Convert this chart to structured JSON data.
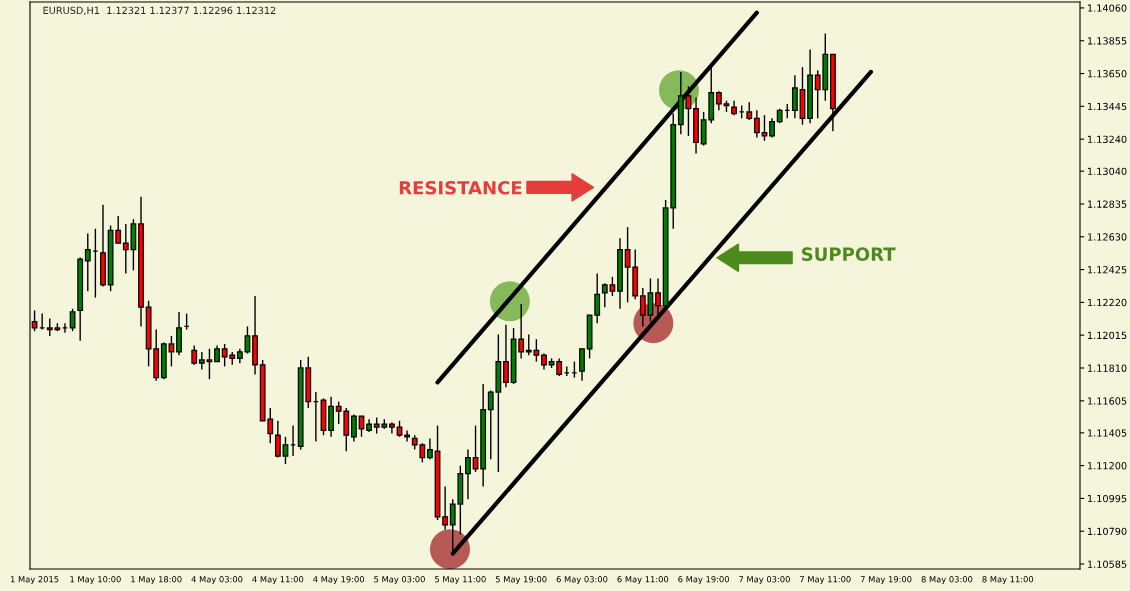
{
  "chart_data": {
    "type": "candlestick",
    "title": "EURUSD,H1  1.12321 1.12377 1.12296 1.12312",
    "categories": [
      "1 May 2015",
      null,
      null,
      null,
      null,
      null,
      null,
      null,
      "1 May 10:00",
      null,
      null,
      null,
      null,
      null,
      null,
      null,
      "1 May 18:00",
      null,
      null,
      null,
      null,
      null,
      null,
      null,
      "4 May 03:00",
      null,
      null,
      null,
      null,
      null,
      null,
      null,
      "4 May 11:00",
      null,
      null,
      null,
      null,
      null,
      null,
      null,
      "4 May 19:00",
      null,
      null,
      null,
      null,
      null,
      null,
      null,
      "5 May 03:00",
      null,
      null,
      null,
      null,
      null,
      null,
      null,
      "5 May 11:00",
      null,
      null,
      null,
      null,
      null,
      null,
      null,
      "5 May 19:00",
      null,
      null,
      null,
      null,
      null,
      null,
      null,
      "6 May 03:00",
      null,
      null,
      null,
      null,
      null,
      null,
      null,
      "6 May 11:00",
      null,
      null,
      null,
      null,
      null,
      null,
      null,
      "6 May 19:00",
      null,
      null,
      null,
      null,
      null,
      null,
      null,
      "7 May 03:00",
      null,
      null,
      null,
      null,
      null,
      null,
      null,
      "7 May 11:00",
      null,
      null,
      null,
      null,
      null,
      null,
      null,
      "7 May 19:00",
      null,
      null,
      null,
      null,
      null,
      null,
      null,
      "8 May 03:00",
      null,
      null,
      null,
      null,
      null,
      null,
      null,
      "8 May 11:00",
      null,
      null,
      null,
      null,
      null,
      null,
      null,
      null,
      null
    ],
    "ohlc": [
      [
        1.121,
        1.1217,
        1.1204,
        1.1206
      ],
      [
        1.1206,
        1.1215,
        1.1205,
        1.1206
      ],
      [
        1.1206,
        1.1212,
        1.1201,
        1.1205
      ],
      [
        1.1206,
        1.1209,
        1.1204,
        1.1205
      ],
      [
        1.1206,
        1.1209,
        1.1203,
        1.1206
      ],
      [
        1.1206,
        1.1218,
        1.1204,
        1.1216
      ],
      [
        1.1217,
        1.125,
        1.1198,
        1.1249
      ],
      [
        1.1248,
        1.1265,
        1.1229,
        1.1255
      ],
      [
        1.1254,
        1.1268,
        1.1225,
        1.1254
      ],
      [
        1.1253,
        1.1283,
        1.1232,
        1.1233
      ],
      [
        1.1233,
        1.127,
        1.1229,
        1.1267
      ],
      [
        1.1267,
        1.1276,
        1.1259,
        1.1259
      ],
      [
        1.1259,
        1.1271,
        1.124,
        1.1255
      ],
      [
        1.1255,
        1.1274,
        1.1242,
        1.1271
      ],
      [
        1.1271,
        1.1288,
        1.1207,
        1.1219
      ],
      [
        1.1219,
        1.1223,
        1.1182,
        1.1193
      ],
      [
        1.1193,
        1.1205,
        1.1173,
        1.1175
      ],
      [
        1.1175,
        1.1197,
        1.1174,
        1.1196
      ],
      [
        1.1196,
        1.1201,
        1.1182,
        1.1191
      ],
      [
        1.1191,
        1.1216,
        1.1189,
        1.1206
      ],
      [
        1.1207,
        1.1215,
        1.1205,
        1.1207
      ],
      [
        1.1192,
        1.1195,
        1.1183,
        1.1184
      ],
      [
        1.1184,
        1.1191,
        1.118,
        1.1186
      ],
      [
        1.1186,
        1.1193,
        1.1174,
        1.1185
      ],
      [
        1.1185,
        1.1195,
        1.1185,
        1.1193
      ],
      [
        1.1193,
        1.1196,
        1.1182,
        1.1188
      ],
      [
        1.1189,
        1.1191,
        1.1183,
        1.1187
      ],
      [
        1.1187,
        1.1193,
        1.1184,
        1.1191
      ],
      [
        1.1191,
        1.1207,
        1.119,
        1.1201
      ],
      [
        1.1201,
        1.1226,
        1.1177,
        1.1183
      ],
      [
        1.1183,
        1.1186,
        1.1148,
        1.1148
      ],
      [
        1.1149,
        1.1156,
        1.1134,
        1.114
      ],
      [
        1.1139,
        1.1148,
        1.1125,
        1.1126
      ],
      [
        1.1126,
        1.1138,
        1.1121,
        1.1133
      ],
      [
        1.1133,
        1.1145,
        1.1126,
        1.1133
      ],
      [
        1.1132,
        1.1186,
        1.113,
        1.1181
      ],
      [
        1.1181,
        1.1188,
        1.1156,
        1.116
      ],
      [
        1.116,
        1.1166,
        1.1135,
        1.116
      ],
      [
        1.1161,
        1.1162,
        1.1139,
        1.1142
      ],
      [
        1.1142,
        1.1163,
        1.1138,
        1.1157
      ],
      [
        1.1157,
        1.116,
        1.1146,
        1.1154
      ],
      [
        1.1154,
        1.1156,
        1.1129,
        1.1139
      ],
      [
        1.1138,
        1.1152,
        1.1135,
        1.1151
      ],
      [
        1.1151,
        1.1151,
        1.1138,
        1.1143
      ],
      [
        1.1142,
        1.1149,
        1.1141,
        1.1146
      ],
      [
        1.1146,
        1.115,
        1.114,
        1.1144
      ],
      [
        1.1144,
        1.1149,
        1.1143,
        1.1146
      ],
      [
        1.1146,
        1.1147,
        1.114,
        1.1144
      ],
      [
        1.1144,
        1.1148,
        1.1138,
        1.1139
      ],
      [
        1.1139,
        1.1142,
        1.1135,
        1.1138
      ],
      [
        1.1137,
        1.1139,
        1.113,
        1.1133
      ],
      [
        1.1133,
        1.1134,
        1.1122,
        1.1125
      ],
      [
        1.1125,
        1.1137,
        1.1124,
        1.113
      ],
      [
        1.1129,
        1.1145,
        1.1086,
        1.1088
      ],
      [
        1.1088,
        1.1107,
        1.108,
        1.1083
      ],
      [
        1.1083,
        1.1099,
        1.1064,
        1.1096
      ],
      [
        1.1096,
        1.112,
        1.1077,
        1.1115
      ],
      [
        1.1115,
        1.113,
        1.1099,
        1.1125
      ],
      [
        1.1125,
        1.1145,
        1.1116,
        1.1118
      ],
      [
        1.1118,
        1.1171,
        1.1107,
        1.1155
      ],
      [
        1.1155,
        1.1167,
        1.1124,
        1.1166
      ],
      [
        1.1166,
        1.1202,
        1.1116,
        1.1185
      ],
      [
        1.1185,
        1.1208,
        1.1169,
        1.1172
      ],
      [
        1.1172,
        1.1206,
        1.1171,
        1.1199
      ],
      [
        1.1199,
        1.1221,
        1.1187,
        1.1191
      ],
      [
        1.1191,
        1.1202,
        1.1189,
        1.1192
      ],
      [
        1.1192,
        1.1199,
        1.1185,
        1.1189
      ],
      [
        1.1189,
        1.119,
        1.118,
        1.1183
      ],
      [
        1.1183,
        1.1187,
        1.1181,
        1.1185
      ],
      [
        1.1185,
        1.1187,
        1.1176,
        1.1177
      ],
      [
        1.1178,
        1.1182,
        1.1176,
        1.1178
      ],
      [
        1.1178,
        1.1185,
        1.1175,
        1.1178
      ],
      [
        1.1179,
        1.1193,
        1.1173,
        1.1193
      ],
      [
        1.1193,
        1.1214,
        1.1187,
        1.1214
      ],
      [
        1.1214,
        1.124,
        1.1209,
        1.1227
      ],
      [
        1.1228,
        1.1234,
        1.1219,
        1.1233
      ],
      [
        1.1233,
        1.1238,
        1.1226,
        1.1229
      ],
      [
        1.1229,
        1.1262,
        1.1218,
        1.1255
      ],
      [
        1.1255,
        1.1269,
        1.1222,
        1.1244
      ],
      [
        1.1244,
        1.1255,
        1.1224,
        1.1226
      ],
      [
        1.1226,
        1.1231,
        1.1207,
        1.1214
      ],
      [
        1.1214,
        1.1237,
        1.121,
        1.1228
      ],
      [
        1.1228,
        1.1237,
        1.1214,
        1.122
      ],
      [
        1.122,
        1.1286,
        1.1218,
        1.1281
      ],
      [
        1.1281,
        1.134,
        1.1268,
        1.1333
      ],
      [
        1.1333,
        1.1366,
        1.1327,
        1.1351
      ],
      [
        1.1351,
        1.1357,
        1.1326,
        1.1343
      ],
      [
        1.1343,
        1.135,
        1.1315,
        1.1322
      ],
      [
        1.1321,
        1.1341,
        1.132,
        1.1336
      ],
      [
        1.1336,
        1.1369,
        1.1334,
        1.1353
      ],
      [
        1.1353,
        1.1354,
        1.1342,
        1.1346
      ],
      [
        1.1346,
        1.1348,
        1.1341,
        1.1345
      ],
      [
        1.1344,
        1.1348,
        1.1339,
        1.134
      ],
      [
        1.1341,
        1.1345,
        1.1337,
        1.1341
      ],
      [
        1.1341,
        1.1347,
        1.1336,
        1.1337
      ],
      [
        1.1337,
        1.1342,
        1.1325,
        1.1328
      ],
      [
        1.1328,
        1.1339,
        1.1323,
        1.1326
      ],
      [
        1.1326,
        1.1337,
        1.1325,
        1.1335
      ],
      [
        1.1335,
        1.1343,
        1.1334,
        1.1342
      ],
      [
        1.1342,
        1.1346,
        1.1337,
        1.1342
      ],
      [
        1.1342,
        1.1364,
        1.1337,
        1.1356
      ],
      [
        1.1355,
        1.1369,
        1.1333,
        1.1337
      ],
      [
        1.1337,
        1.138,
        1.1334,
        1.1364
      ],
      [
        1.1364,
        1.1367,
        1.1337,
        1.1355
      ],
      [
        1.1355,
        1.139,
        1.1348,
        1.1377
      ],
      [
        1.1377,
        1.1377,
        1.1329,
        1.1343
      ],
      null,
      null,
      null,
      null,
      null,
      null,
      null,
      null,
      null,
      null,
      null,
      null,
      null,
      null,
      null,
      null,
      null,
      null,
      null,
      null,
      null,
      null,
      null,
      null,
      null,
      null,
      null,
      null,
      null,
      null,
      null,
      null
    ],
    "colors": [
      "#ff0000",
      "#000000",
      "#ff0000",
      "#ff0000",
      "#000000",
      "#008000",
      "#008000",
      "#008000",
      "#000000",
      "#ff0000",
      "#008000",
      "#ff0000",
      "#ff0000",
      "#008000",
      "#ff0000",
      "#ff0000",
      "#ff0000",
      "#008000",
      "#ff0000",
      "#008000",
      "#000000",
      "#ff0000",
      "#008000",
      "#ff0000",
      "#008000",
      "#ff0000",
      "#ff0000",
      "#008000",
      "#008000",
      "#ff0000",
      "#ff0000",
      "#ff0000",
      "#ff0000",
      "#008000",
      "#000000",
      "#008000",
      "#ff0000",
      "#000000",
      "#ff0000",
      "#008000",
      "#ff0000",
      "#ff0000",
      "#008000",
      "#ff0000",
      "#008000",
      "#ff0000",
      "#008000",
      "#ff0000",
      "#ff0000",
      "#ff0000",
      "#ff0000",
      "#ff0000",
      "#008000",
      "#ff0000",
      "#ff0000",
      "#008000",
      "#008000",
      "#008000",
      "#ff0000",
      "#008000",
      "#008000",
      "#008000",
      "#ff0000",
      "#008000",
      "#ff0000",
      "#008000",
      "#ff0000",
      "#ff0000",
      "#008000",
      "#ff0000",
      "#000000",
      "#000000",
      "#008000",
      "#008000",
      "#008000",
      "#008000",
      "#ff0000",
      "#008000",
      "#ff0000",
      "#ff0000",
      "#ff0000",
      "#008000",
      "#ff0000",
      "#008000",
      "#008000",
      "#008000",
      "#ff0000",
      "#ff0000",
      "#008000",
      "#008000",
      "#ff0000",
      "#ff0000",
      "#ff0000",
      "#000000",
      "#ff0000",
      "#ff0000",
      "#ff0000",
      "#008000",
      "#008000",
      "#000000",
      "#008000",
      "#ff0000",
      "#008000",
      "#ff0000",
      "#008000",
      "#ff0000",
      null,
      null,
      null,
      null,
      null,
      null,
      null,
      null,
      null,
      null,
      null,
      null,
      null,
      null,
      null,
      null,
      null,
      null,
      null,
      null,
      null,
      null,
      null,
      null,
      null,
      null,
      null,
      null,
      null,
      null,
      null,
      null
    ],
    "series": [
      {
        "type": "line",
        "color": "#000000",
        "values": [
          null,
          null,
          null,
          null,
          null,
          null,
          null,
          null,
          null,
          null,
          null,
          null,
          null,
          null,
          null,
          null,
          null,
          null,
          null,
          null,
          null,
          null,
          null,
          null,
          null,
          null,
          null,
          null,
          null,
          null,
          null,
          null,
          null,
          null,
          null,
          null,
          null,
          null,
          null,
          null,
          null,
          null,
          null,
          null,
          null,
          null,
          null,
          null,
          null,
          null,
          null,
          null,
          null,
          1.1172,
          null,
          null,
          null,
          null,
          null,
          null,
          null,
          null,
          null,
          null,
          null,
          null,
          null,
          null,
          null,
          null,
          null,
          null,
          null,
          null,
          null,
          null,
          null,
          null,
          null,
          null,
          null,
          null,
          null,
          null,
          null,
          null,
          null,
          null,
          null,
          null,
          null,
          null,
          null,
          null,
          null,
          1.1403,
          null,
          null,
          null,
          null,
          null,
          null,
          null,
          null,
          null,
          null,
          null,
          null,
          null,
          null,
          null,
          null,
          null,
          null,
          null,
          null,
          null,
          null,
          null,
          null,
          null,
          null,
          null,
          null,
          null,
          null,
          null,
          null,
          null,
          null,
          null,
          null,
          null,
          null,
          null,
          null,
          null,
          null
        ]
      },
      {
        "type": "line",
        "color": "#000000",
        "values": [
          null,
          null,
          null,
          null,
          null,
          null,
          null,
          null,
          null,
          null,
          null,
          null,
          null,
          null,
          null,
          null,
          null,
          null,
          null,
          null,
          null,
          null,
          null,
          null,
          null,
          null,
          null,
          null,
          null,
          null,
          null,
          null,
          null,
          null,
          null,
          null,
          null,
          null,
          null,
          null,
          null,
          null,
          null,
          null,
          null,
          null,
          null,
          null,
          null,
          null,
          null,
          null,
          null,
          null,
          null,
          1.1065,
          null,
          null,
          null,
          null,
          null,
          null,
          null,
          null,
          null,
          null,
          null,
          null,
          null,
          null,
          null,
          null,
          null,
          null,
          null,
          null,
          null,
          null,
          null,
          null,
          null,
          null,
          null,
          null,
          null,
          null,
          null,
          null,
          null,
          null,
          null,
          null,
          null,
          null,
          null,
          null,
          null,
          null,
          null,
          null,
          null,
          null,
          null,
          null,
          null,
          null,
          null,
          null,
          null,
          null,
          1.1366,
          null,
          null,
          null,
          null,
          null,
          null,
          null,
          null,
          null,
          null,
          null,
          null,
          null,
          null,
          null,
          null,
          null,
          null,
          null,
          null,
          null,
          null,
          null,
          null,
          null,
          null,
          null
        ]
      }
    ],
    "ylim": [
      1.10554,
      1.14097
    ],
    "yticks": [
      {
        "value": 1.1406,
        "label": "1.14060"
      },
      {
        "value": 1.13855,
        "label": "1.13855"
      },
      {
        "value": 1.1365,
        "label": "1.13650"
      },
      {
        "value": 1.13445,
        "label": "1.13445"
      },
      {
        "value": 1.1324,
        "label": "1.13240"
      },
      {
        "value": 1.1304,
        "label": "1.13040"
      },
      {
        "value": 1.12835,
        "label": "1.12835"
      },
      {
        "value": 1.1263,
        "label": "1.12630"
      },
      {
        "value": 1.12425,
        "label": "1.12425"
      },
      {
        "value": 1.1222,
        "label": "1.12220"
      },
      {
        "value": 1.12015,
        "label": "1.12015"
      },
      {
        "value": 1.1181,
        "label": "1.11810"
      },
      {
        "value": 1.11605,
        "label": "1.11605"
      },
      {
        "value": 1.11405,
        "label": "1.11405"
      },
      {
        "value": 1.112,
        "label": "1.11200"
      },
      {
        "value": 1.10995,
        "label": "1.10995"
      },
      {
        "value": 1.1079,
        "label": "1.10790"
      },
      {
        "value": 1.10585,
        "label": "1.10585"
      }
    ],
    "annotations": [
      "RESISTANCE",
      "SUPPORT"
    ],
    "grid": false,
    "legend": false
  }
}
